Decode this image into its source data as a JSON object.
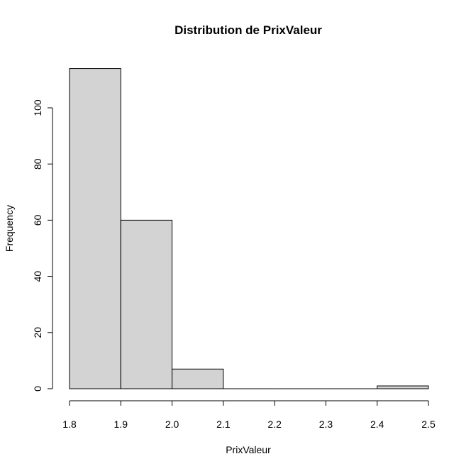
{
  "chart_data": {
    "type": "bar",
    "title": "Distribution de PrixValeur",
    "xlabel": "PrixValeur",
    "ylabel": "Frequency",
    "bins": [
      {
        "start": 1.8,
        "end": 1.9,
        "count": 114
      },
      {
        "start": 1.9,
        "end": 2.0,
        "count": 60
      },
      {
        "start": 2.0,
        "end": 2.1,
        "count": 7
      },
      {
        "start": 2.1,
        "end": 2.2,
        "count": 0
      },
      {
        "start": 2.2,
        "end": 2.3,
        "count": 0
      },
      {
        "start": 2.3,
        "end": 2.4,
        "count": 0
      },
      {
        "start": 2.4,
        "end": 2.5,
        "count": 1
      }
    ],
    "xlim": [
      1.8,
      2.5
    ],
    "ylim": [
      0,
      114
    ],
    "xticks": [
      "1.8",
      "1.9",
      "2.0",
      "2.1",
      "2.2",
      "2.3",
      "2.4",
      "2.5"
    ],
    "yticks": [
      "0",
      "20",
      "40",
      "60",
      "80",
      "100"
    ],
    "grid": false,
    "bar_color": "#d3d3d3",
    "edge_color": "#000000"
  }
}
